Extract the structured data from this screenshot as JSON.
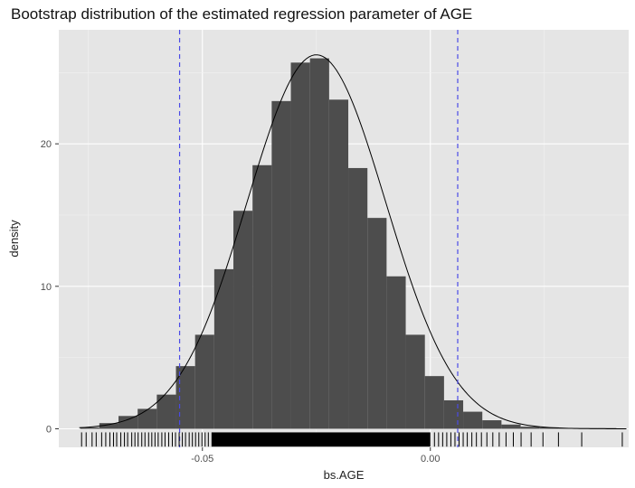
{
  "chart_data": {
    "type": "bar",
    "title": "Bootstrap distribution of the estimated regression parameter of AGE",
    "xlabel": "bs.AGE",
    "ylabel": "density",
    "xlim": [
      -0.0815,
      0.0435
    ],
    "ylim": [
      -1.3,
      28.0
    ],
    "x_ticks": [
      -0.05,
      0.0
    ],
    "x_tick_labels": [
      "-0.05",
      "0.00"
    ],
    "y_ticks": [
      0,
      10,
      20
    ],
    "y_tick_labels": [
      "0",
      "10",
      "20"
    ],
    "grid": true,
    "bin_width": 0.0042,
    "bins": [
      {
        "x0": -0.0768,
        "x1": -0.0726,
        "density": 0.1
      },
      {
        "x0": -0.0726,
        "x1": -0.0684,
        "density": 0.4
      },
      {
        "x0": -0.0684,
        "x1": -0.0642,
        "density": 0.9
      },
      {
        "x0": -0.0642,
        "x1": -0.06,
        "density": 1.4
      },
      {
        "x0": -0.06,
        "x1": -0.0558,
        "density": 2.4
      },
      {
        "x0": -0.0558,
        "x1": -0.0516,
        "density": 4.4
      },
      {
        "x0": -0.0516,
        "x1": -0.0474,
        "density": 6.6
      },
      {
        "x0": -0.0474,
        "x1": -0.0432,
        "density": 11.2
      },
      {
        "x0": -0.0432,
        "x1": -0.039,
        "density": 15.3
      },
      {
        "x0": -0.039,
        "x1": -0.0348,
        "density": 18.5
      },
      {
        "x0": -0.0348,
        "x1": -0.0306,
        "density": 23.0
      },
      {
        "x0": -0.0306,
        "x1": -0.0264,
        "density": 25.7
      },
      {
        "x0": -0.0264,
        "x1": -0.0222,
        "density": 26.0
      },
      {
        "x0": -0.0222,
        "x1": -0.018,
        "density": 23.1
      },
      {
        "x0": -0.018,
        "x1": -0.0138,
        "density": 18.3
      },
      {
        "x0": -0.0138,
        "x1": -0.0096,
        "density": 14.8
      },
      {
        "x0": -0.0096,
        "x1": -0.0054,
        "density": 10.7
      },
      {
        "x0": -0.0054,
        "x1": -0.0012,
        "density": 6.6
      },
      {
        "x0": -0.0012,
        "x1": 0.003,
        "density": 3.7
      },
      {
        "x0": 0.003,
        "x1": 0.0072,
        "density": 2.0
      },
      {
        "x0": 0.0072,
        "x1": 0.0114,
        "density": 1.2
      },
      {
        "x0": 0.0114,
        "x1": 0.0156,
        "density": 0.6
      },
      {
        "x0": 0.0156,
        "x1": 0.0198,
        "density": 0.3
      },
      {
        "x0": 0.0198,
        "x1": 0.024,
        "density": 0.15
      },
      {
        "x0": 0.024,
        "x1": 0.0282,
        "density": 0.1
      },
      {
        "x0": 0.0282,
        "x1": 0.0324,
        "density": 0.05
      },
      {
        "x0": 0.0324,
        "x1": 0.0366,
        "density": 0.05
      },
      {
        "x0": 0.0366,
        "x1": 0.0408,
        "density": 0.05
      }
    ],
    "density_curve": {
      "mean": -0.025,
      "sd": 0.0152,
      "x_from": -0.077,
      "x_to": 0.043
    },
    "reference_lines": [
      {
        "x": -0.055,
        "color": "#4a4ae6",
        "style": "dashed"
      },
      {
        "x": 0.006,
        "color": "#4a4ae6",
        "style": "dashed"
      }
    ],
    "rug": {
      "dense_from": -0.048,
      "dense_to": 0.0,
      "sparse_x": [
        -0.0765,
        -0.0755,
        -0.0742,
        -0.0733,
        -0.0721,
        -0.0712,
        -0.0703,
        -0.0695,
        -0.0688,
        -0.0679,
        -0.0671,
        -0.0664,
        -0.0655,
        -0.0648,
        -0.0641,
        -0.0633,
        -0.0626,
        -0.0618,
        -0.0611,
        -0.0604,
        -0.0597,
        -0.0589,
        -0.0582,
        -0.0574,
        -0.0566,
        -0.0559,
        -0.0551,
        -0.0544,
        -0.0537,
        -0.0529,
        -0.0522,
        -0.0515,
        -0.0508,
        -0.0501,
        -0.0494,
        -0.0487,
        0.0009,
        0.0018,
        0.0027,
        0.0036,
        0.0045,
        0.0054,
        0.0063,
        0.0072,
        0.0081,
        0.0091,
        0.0101,
        0.0112,
        0.0124,
        0.0137,
        0.0151,
        0.0166,
        0.0182,
        0.0199,
        0.0221,
        0.0247,
        0.0281,
        0.0332,
        0.0421
      ]
    },
    "colors": {
      "panel_background": "#e5e5e5",
      "grid_major": "#ffffff",
      "grid_minor": "#f2f2f2",
      "bar_fill": "#4d4d4d",
      "curve": "#000000",
      "rug": "#000000"
    }
  }
}
